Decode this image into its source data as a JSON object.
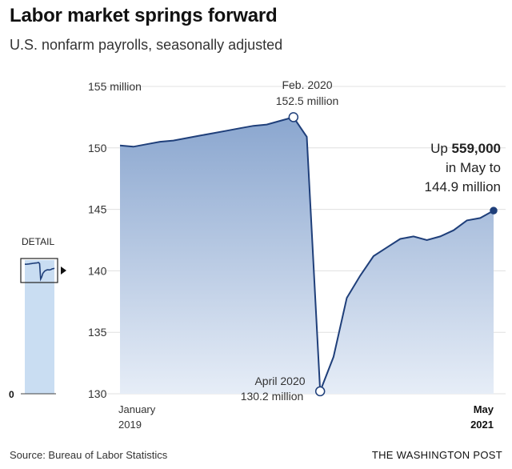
{
  "header": {
    "title": "Labor market springs forward",
    "subtitle": "U.S. nonfarm payrolls, seasonally adjusted"
  },
  "footer": {
    "source": "Source: Bureau of Labor Statistics",
    "credit": "THE WASHINGTON POST"
  },
  "colors": {
    "area_top": "#8aa6cf",
    "area_bottom": "#e6edf7",
    "line": "#1f3f7a",
    "detail_fill": "#c9ddf2",
    "grid": "#e0e0e0"
  },
  "detail": {
    "label": "DETAIL",
    "zero_label": "0"
  },
  "annotations": {
    "feb_line1": "Feb. 2020",
    "feb_line2": "152.5 million",
    "apr_line1": "April 2020",
    "apr_line2": "130.2 million",
    "may_prefix": "Up ",
    "may_bold": "559,000",
    "may_line2": "in May to",
    "may_line3": "144.9 million"
  },
  "chart_data": {
    "type": "area",
    "title": "Labor market springs forward",
    "subtitle": "U.S. nonfarm payrolls, seasonally adjusted",
    "xlabel": "",
    "ylabel": "",
    "ylim": [
      130,
      155
    ],
    "yticks": [
      130,
      135,
      140,
      145,
      150,
      155
    ],
    "ytick_labels": [
      "130",
      "135",
      "140",
      "145",
      "150",
      "155 million"
    ],
    "xtick_labels": [
      {
        "line1": "January",
        "line2": "2019",
        "bold": false
      },
      {
        "line1": "May",
        "line2": "2021",
        "bold": true
      }
    ],
    "grid": true,
    "x": [
      "2019-01",
      "2019-02",
      "2019-03",
      "2019-04",
      "2019-05",
      "2019-06",
      "2019-07",
      "2019-08",
      "2019-09",
      "2019-10",
      "2019-11",
      "2019-12",
      "2020-01",
      "2020-02",
      "2020-03",
      "2020-04",
      "2020-05",
      "2020-06",
      "2020-07",
      "2020-08",
      "2020-09",
      "2020-10",
      "2020-11",
      "2020-12",
      "2021-01",
      "2021-02",
      "2021-03",
      "2021-04",
      "2021-05"
    ],
    "series": [
      {
        "values": [
          150.2,
          150.1,
          150.3,
          150.5,
          150.6,
          150.8,
          151.0,
          151.2,
          151.4,
          151.6,
          151.8,
          151.9,
          152.2,
          152.5,
          150.9,
          130.2,
          133.0,
          137.8,
          139.6,
          141.2,
          141.9,
          142.6,
          142.8,
          142.5,
          142.8,
          143.3,
          144.1,
          144.3,
          144.9
        ]
      }
    ],
    "highlights": [
      {
        "x": "2020-02",
        "y": 152.5,
        "style": "open"
      },
      {
        "x": "2020-04",
        "y": 130.2,
        "style": "open"
      },
      {
        "x": "2021-05",
        "y": 144.9,
        "style": "filled"
      }
    ]
  }
}
